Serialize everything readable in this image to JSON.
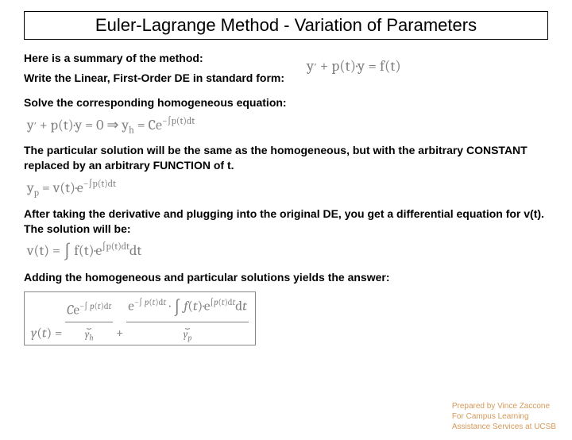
{
  "title": "Euler-Lagrange Method - Variation of Parameters",
  "intro_line1": "Here is a summary of the method:",
  "intro_line2": "Write the Linear, First-Order DE in standard form:",
  "eq_standard": "y′ + p(t)·y = f(t)",
  "solve_hom": "Solve the corresponding homogeneous equation:",
  "eq_hom": "y′ + p(t)·y = 0 ⇒ y_h = Ce^−∫p(t)dt",
  "particular_text": "The particular solution will be the same as the homogeneous, but with the arbitrary CONSTANT replaced by an arbitrary FUNCTION of t.",
  "eq_yp": "y_p = v(t)·e^−∫p(t)dt",
  "derivative_text": "After taking the derivative and plugging into the original DE, you get a differential equation for v(t).  The solution will be:",
  "eq_vt": "v(t) = ∫ f(t)·e^∫p(t)dt dt",
  "adding_text": "Adding the homogeneous and particular solutions yields the answer:",
  "final_lhs": "y(t) = ",
  "final_term1": "Ce^−∫ p(t)dt",
  "final_label1": "y_h",
  "final_plus": " + ",
  "final_term2": "e^−∫ p(t)dt · ∫ f(t)·e^∫p(t)dt dt",
  "final_label2": "y_p",
  "footer1": "Prepared by Vince Zaccone",
  "footer2": "For Campus Learning",
  "footer3": "Assistance Services at UCSB",
  "colors": {
    "eq_gray": "#808080",
    "footer_color": "#d69a5a",
    "bg": "#ffffff",
    "text": "#000000"
  }
}
